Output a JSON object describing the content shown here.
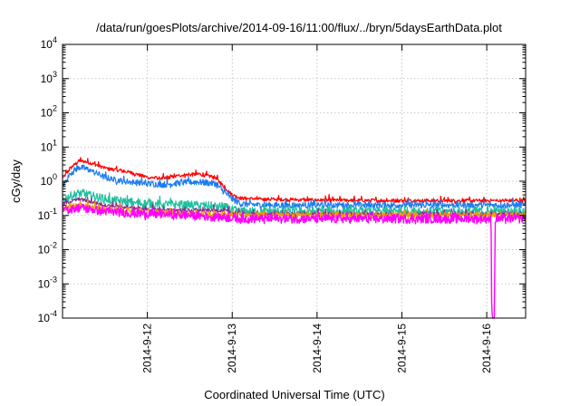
{
  "chart_data": {
    "type": "line",
    "title": "/data/run/goesPlots/archive/2014-09-16/11:00/flux/../bryn/5daysEarthData.plot",
    "xlabel": "Coordinated Universal Time (UTC)",
    "ylabel": "cGy/day",
    "y_scale": "log",
    "ylim": [
      0.0001,
      10000
    ],
    "xlim": [
      "2014-09-11 00:00",
      "2014-09-16 11:00"
    ],
    "y_ticks": [
      {
        "base": "10",
        "exp": "-4"
      },
      {
        "base": "10",
        "exp": "-3"
      },
      {
        "base": "10",
        "exp": "-2"
      },
      {
        "base": "10",
        "exp": "-1"
      },
      {
        "base": "10",
        "exp": "0"
      },
      {
        "base": "10",
        "exp": "1"
      },
      {
        "base": "10",
        "exp": "2"
      },
      {
        "base": "10",
        "exp": "3"
      },
      {
        "base": "10",
        "exp": "4"
      }
    ],
    "x_ticks": [
      {
        "label": "2014-9-12",
        "day": 1.0
      },
      {
        "label": "2014-9-13",
        "day": 2.0
      },
      {
        "label": "2014-9-14",
        "day": 3.0
      },
      {
        "label": "2014-9-15",
        "day": 4.0
      },
      {
        "label": "2014-9-16",
        "day": 5.0
      }
    ],
    "grid": true,
    "legend": "none",
    "series": [
      {
        "color": "#ff0000",
        "x_day": [
          0.0,
          0.1,
          0.2,
          0.3,
          0.4,
          0.5,
          0.6,
          0.8,
          1.0,
          1.2,
          1.4,
          1.6,
          1.8,
          1.9,
          2.0,
          2.1,
          2.3,
          3.0,
          4.0,
          5.0,
          5.45
        ],
        "values": [
          1.2,
          2.5,
          4.0,
          3.6,
          3.0,
          2.4,
          2.2,
          1.8,
          1.3,
          1.2,
          1.5,
          1.6,
          1.3,
          0.7,
          0.4,
          0.32,
          0.3,
          0.28,
          0.27,
          0.27,
          0.27
        ]
      },
      {
        "color": "#1e7cf0",
        "x_day": [
          0.0,
          0.1,
          0.2,
          0.3,
          0.4,
          0.5,
          0.6,
          0.8,
          1.0,
          1.2,
          1.4,
          1.6,
          1.8,
          1.9,
          2.0,
          2.1,
          2.3,
          3.0,
          4.0,
          5.0,
          5.45
        ],
        "values": [
          0.7,
          1.8,
          2.6,
          2.2,
          1.7,
          1.3,
          1.1,
          0.95,
          0.85,
          0.8,
          0.9,
          0.95,
          0.85,
          0.5,
          0.3,
          0.22,
          0.2,
          0.2,
          0.2,
          0.2,
          0.2
        ]
      },
      {
        "color": "#1fbf9f",
        "x_day": [
          0.0,
          0.2,
          0.5,
          0.8,
          1.0,
          1.5,
          1.9,
          2.0,
          2.1,
          3.0,
          4.0,
          5.0,
          5.45
        ],
        "values": [
          0.3,
          0.45,
          0.3,
          0.24,
          0.22,
          0.2,
          0.18,
          0.14,
          0.13,
          0.13,
          0.13,
          0.13,
          0.13
        ]
      },
      {
        "color": "#8b2c8b",
        "x_day": [
          0.0,
          0.2,
          0.5,
          0.8,
          1.0,
          1.5,
          1.9,
          2.0,
          2.1,
          3.0,
          4.0,
          5.0,
          5.45
        ],
        "values": [
          0.22,
          0.3,
          0.2,
          0.17,
          0.15,
          0.14,
          0.14,
          0.12,
          0.11,
          0.11,
          0.11,
          0.11,
          0.11
        ]
      },
      {
        "color": "#e8a000",
        "x_day": [
          0.0,
          0.2,
          0.5,
          1.0,
          2.0,
          3.0,
          4.0,
          5.0,
          5.45
        ],
        "values": [
          0.16,
          0.2,
          0.15,
          0.13,
          0.1,
          0.1,
          0.1,
          0.1,
          0.1
        ]
      },
      {
        "color": "#ff00ff",
        "x_day": [
          0.0,
          0.2,
          0.5,
          1.0,
          1.5,
          2.0,
          2.1,
          3.0,
          4.0,
          5.0,
          5.05,
          5.06,
          5.09,
          5.1,
          5.45
        ],
        "values": [
          0.14,
          0.17,
          0.13,
          0.11,
          0.1,
          0.085,
          0.08,
          0.08,
          0.08,
          0.08,
          0.08,
          0.0001,
          0.0001,
          0.08,
          0.08
        ]
      }
    ]
  }
}
